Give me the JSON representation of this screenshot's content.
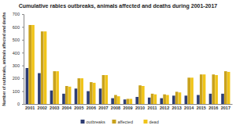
{
  "chart_data": {
    "type": "bar",
    "title": "Cumulative rabies outbreaks, animals affected and deaths during 2001-2017",
    "y_label": "Number of outbreaks, animals affected and deaths",
    "categories": [
      "2001",
      "2002",
      "2003",
      "2004",
      "2005",
      "2006",
      "2007",
      "2008",
      "2009",
      "2010",
      "2011",
      "2012",
      "2013",
      "2014",
      "2015",
      "2016",
      "2017"
    ],
    "series": [
      {
        "name": "outbreaks",
        "color": "#2e3d73",
        "values": [
          280,
          240,
          105,
          80,
          120,
          100,
          120,
          45,
          35,
          55,
          50,
          45,
          65,
          65,
          70,
          80,
          80
        ]
      },
      {
        "name": "affected",
        "color": "#c9a21c",
        "values": [
          615,
          565,
          255,
          140,
          200,
          170,
          225,
          70,
          40,
          145,
          80,
          75,
          95,
          205,
          230,
          230,
          255
        ]
      },
      {
        "name": "dead",
        "color": "#f0c419",
        "values": [
          615,
          565,
          255,
          135,
          200,
          165,
          225,
          60,
          40,
          140,
          75,
          70,
          90,
          205,
          230,
          225,
          250
        ]
      }
    ],
    "ylim": [
      0,
      700
    ],
    "yticks": [
      0,
      100,
      200,
      300,
      400,
      500,
      600,
      700
    ],
    "grid": false,
    "legend": "bottom"
  }
}
